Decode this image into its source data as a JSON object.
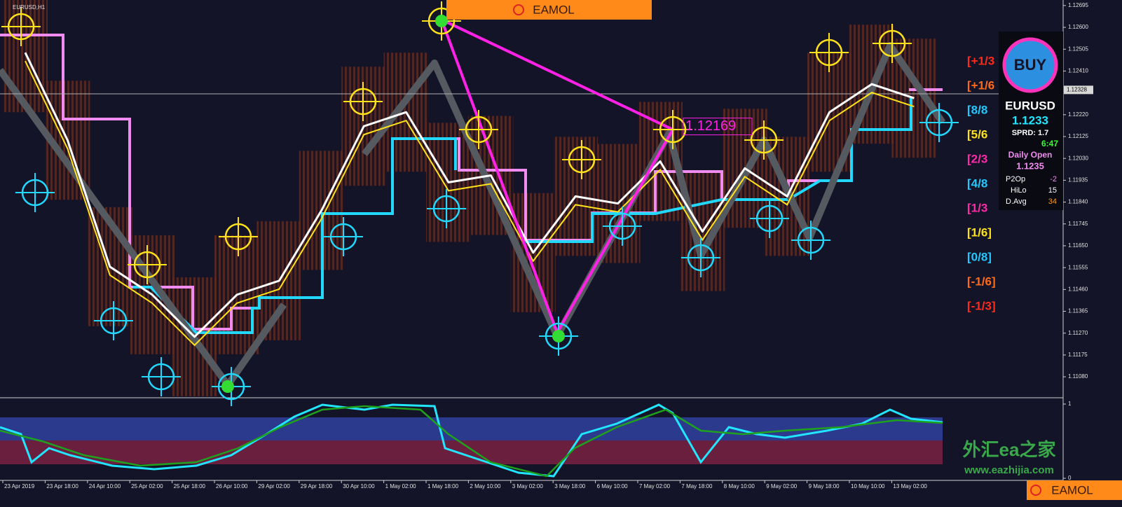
{
  "chart_data": {
    "type": "line",
    "title": "EURUSD,H1",
    "categories": [
      "23 Apr 2019",
      "23 Apr 18:00",
      "24 Apr 10:00",
      "25 Apr 02:00",
      "25 Apr 18:00",
      "26 Apr 10:00",
      "29 Apr 02:00",
      "29 Apr 18:00",
      "30 Apr 10:00",
      "1 May 02:00",
      "1 May 18:00",
      "2 May 10:00",
      "3 May 02:00",
      "3 May 18:00",
      "6 May 10:00",
      "7 May 02:00",
      "7 May 18:00",
      "8 May 10:00",
      "9 May 02:00",
      "9 May 18:00",
      "10 May 10:00",
      "13 May 02:00"
    ],
    "values": [
      1.1249,
      1.12109,
      1.11559,
      1.11437,
      1.11254,
      1.11437,
      1.11498,
      1.11804,
      1.1217,
      1.12231,
      1.11926,
      1.11956,
      1.1162,
      1.11865,
      1.11834,
      1.12017,
      1.11712,
      1.11987,
      1.11865,
      1.12231,
      1.12353,
      1.12292
    ],
    "color": "#ffffff",
    "ylim": [
      1.10995,
      1.12719
    ],
    "yticks": [
      1.12695,
      {
        "value": 1.126,
        "label": "1.12600"
      },
      1.12505,
      {
        "value": 1.1241,
        "label": "1.12410"
      },
      {
        "value": 1.1222,
        "label": "1.12220"
      },
      1.12125,
      {
        "value": 1.1203,
        "label": "1.12030"
      },
      1.11935,
      {
        "value": 1.1184,
        "label": "1.11840"
      },
      1.11745,
      {
        "value": 1.1165,
        "label": "1.11650"
      },
      1.11555,
      {
        "value": 1.1146,
        "label": "1.11460"
      },
      1.11365,
      {
        "value": 1.1127,
        "label": "1.11270"
      },
      1.11175,
      {
        "value": 1.1108,
        "label": "1.11080"
      }
    ],
    "current_price": 1.12328,
    "annotation": 1.12169,
    "levels": [
      "[+1/3",
      "[+1/6",
      "[8/8",
      "[5/6",
      "[2/3",
      "[4/8",
      "[1/3",
      "[1/6]",
      "[0/8]",
      "[-1/6]",
      "[-1/3]"
    ],
    "level_colors": [
      "#ff2a1a",
      "#ff6a1a",
      "#22c8ff",
      "#ffe21a",
      "#ff2aa8",
      "#22c8ff",
      "#ff2aa8",
      "#ffe21a",
      "#22c8ff",
      "#ff6a1a",
      "#ff2a1a"
    ],
    "oscillator": {
      "ylim": [
        0,
        1
      ],
      "yticks": [
        0,
        1
      ]
    }
  },
  "panel": {
    "button": "BUY",
    "symbol": "EURUSD",
    "price": "1.1233",
    "spread": "SPRD: 1.7",
    "timer": "6:47",
    "daily_open_label": "Daily Open",
    "daily_open": "1.1235",
    "stats": [
      [
        "P2Op",
        -2
      ],
      [
        "HiLo",
        15
      ],
      [
        "D.Avg",
        34
      ]
    ]
  },
  "branding": {
    "top_logo": "EAMOL",
    "bottom_logo": "EAMOL",
    "watermark": "外汇ea之家",
    "watermark_url": "www.eazhijia.com"
  }
}
